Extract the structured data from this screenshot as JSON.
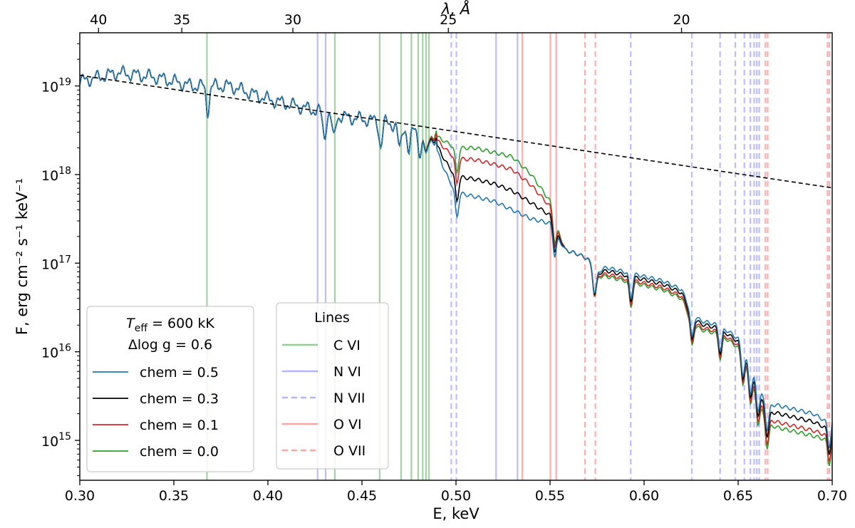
{
  "chart_data": {
    "type": "line",
    "xlabel": "E, keV",
    "ylabel": "F, erg cm⁻² s⁻¹ keV⁻¹",
    "top_xlabel": "λ, Å",
    "xlim": [
      0.3,
      0.7
    ],
    "ylim_log10": [
      14.55,
      19.6
    ],
    "yscale": "log",
    "x_ticks": [
      0.3,
      0.35,
      0.4,
      0.45,
      0.5,
      0.55,
      0.6,
      0.65,
      0.7
    ],
    "x_tick_labels": [
      "0.30",
      "0.35",
      "0.40",
      "0.45",
      "0.50",
      "0.55",
      "0.60",
      "0.65",
      "0.70"
    ],
    "y_ticks": [
      15,
      16,
      17,
      18,
      19
    ],
    "y_tick_labels": [
      "10",
      "10",
      "10",
      "10",
      "10"
    ],
    "y_tick_exponents": [
      "15",
      "16",
      "17",
      "18",
      "19"
    ],
    "top_ticks_angstrom": [
      40,
      35,
      30,
      25,
      20
    ],
    "top_tick_labels": [
      "40",
      "35",
      "30",
      "25",
      "20"
    ],
    "legend_params": {
      "line1": "T",
      "line1_sub": "eff",
      "line1_rest": " = 600 kK",
      "line2": "Δlog g = 0.6",
      "placement": "bottom-left"
    },
    "series": [
      {
        "name": "chem = 0.5",
        "color": "#1f77b4",
        "red_scale": 1.0
      },
      {
        "name": "chem = 0.3",
        "color": "#000000",
        "red_scale": 0.82
      },
      {
        "name": "chem = 0.1",
        "color": "#d62728",
        "red_scale": 0.62
      },
      {
        "name": "chem = 0.0",
        "color": "#2ca02c",
        "red_scale": 0.5
      }
    ],
    "anchor_x": [
      0.3,
      0.32,
      0.34,
      0.36,
      0.38,
      0.4,
      0.42,
      0.44,
      0.46,
      0.48,
      0.488,
      0.492,
      0.496,
      0.5,
      0.51,
      0.52,
      0.53,
      0.54,
      0.55,
      0.554,
      0.558,
      0.565,
      0.57,
      0.575,
      0.58,
      0.59,
      0.6,
      0.61,
      0.62,
      0.625,
      0.63,
      0.64,
      0.65,
      0.655,
      0.66,
      0.665,
      0.67,
      0.68,
      0.69,
      0.698,
      0.7
    ],
    "anchor_log10_f_chem05": [
      19.05,
      19.15,
      19.1,
      19.0,
      19.0,
      18.85,
      18.75,
      18.65,
      18.6,
      18.5,
      18.4,
      18.15,
      17.95,
      17.8,
      17.75,
      17.7,
      17.6,
      17.5,
      17.45,
      17.3,
      17.15,
      17.1,
      17.05,
      16.9,
      16.95,
      16.9,
      16.85,
      16.8,
      16.7,
      16.45,
      16.35,
      16.3,
      16.15,
      15.9,
      15.65,
      15.4,
      15.4,
      15.35,
      15.3,
      15.2,
      15.25
    ],
    "anchor_log10_f_chem00": [
      19.05,
      19.15,
      19.1,
      19.0,
      19.0,
      18.85,
      18.75,
      18.65,
      18.6,
      18.5,
      18.45,
      18.4,
      18.35,
      18.3,
      18.3,
      18.25,
      18.2,
      18.0,
      17.7,
      17.4,
      17.15,
      17.1,
      17.05,
      16.85,
      16.85,
      16.8,
      16.75,
      16.7,
      16.6,
      16.35,
      16.25,
      16.2,
      16.05,
      15.8,
      15.5,
      15.2,
      15.15,
      15.1,
      15.05,
      15.0,
      15.05
    ],
    "absorption_dips_keV": [
      0.368,
      0.43,
      0.435,
      0.46,
      0.47,
      0.475,
      0.481,
      0.484,
      0.5005,
      0.5525,
      0.5737,
      0.593,
      0.6255,
      0.6405,
      0.6525,
      0.6565,
      0.6605,
      0.6655,
      0.6985
    ],
    "blackbody_dashed": {
      "x": [
        0.3,
        0.7
      ],
      "log10_f": [
        19.12,
        17.85
      ]
    },
    "lines_legend_title": "Lines",
    "lines_legend_placement": "bottom-center",
    "lines": [
      {
        "name": "C VI",
        "color": "#2ca02c",
        "style": "solid",
        "energies_keV": [
          0.3676,
          0.4356,
          0.4594,
          0.4708,
          0.4763,
          0.4799,
          0.4823,
          0.4841,
          0.4856
        ]
      },
      {
        "name": "N VI",
        "color": "#6a6aff",
        "style": "solid",
        "energies_keV": [
          0.4264,
          0.4307,
          0.5213,
          0.5327
        ]
      },
      {
        "name": "N VII",
        "color": "#6a6aff",
        "style": "dashed",
        "energies_keV": [
          0.4975,
          0.5002,
          0.5929,
          0.6254,
          0.6404,
          0.6485,
          0.6533,
          0.6565,
          0.6585,
          0.6599,
          0.6612
        ]
      },
      {
        "name": "O VI",
        "color": "#ff4a4a",
        "style": "solid",
        "energies_keV": [
          0.5353,
          0.5502,
          0.5533
        ]
      },
      {
        "name": "O VII",
        "color": "#ff4a4a",
        "style": "dashed",
        "energies_keV": [
          0.5686,
          0.5741,
          0.6645,
          0.6657,
          0.6975,
          0.6985
        ]
      }
    ]
  }
}
